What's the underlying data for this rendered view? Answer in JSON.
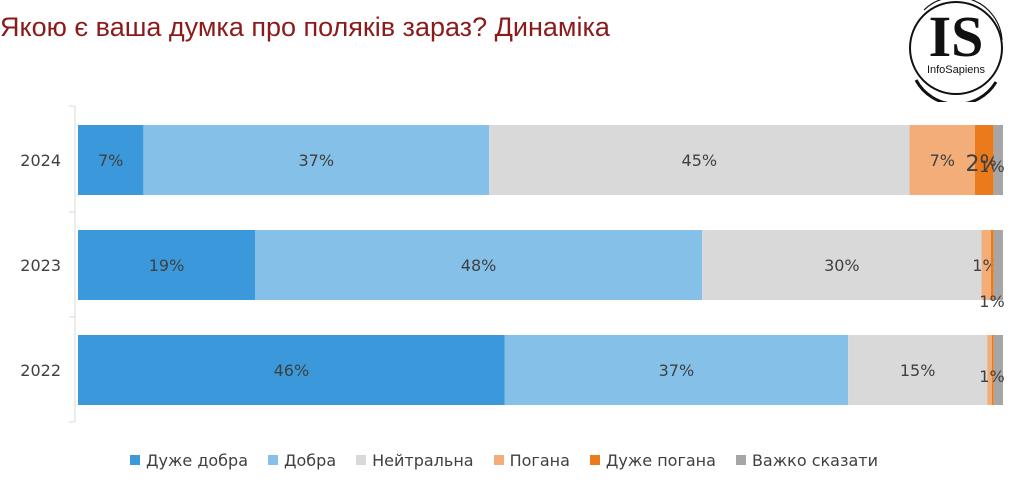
{
  "title": "Якою є ваша думка про поляків зараз? Динаміка",
  "logo": {
    "text": "IS",
    "subtext": "InfoSapiens"
  },
  "chart_data": {
    "type": "bar",
    "orientation": "horizontal",
    "stacked": true,
    "categories": [
      "2024",
      "2023",
      "2022"
    ],
    "series": [
      {
        "name": "Дуже добра",
        "color": "#3a98db",
        "values": [
          7,
          19,
          46
        ],
        "labels": [
          "7%",
          "19%",
          "46%"
        ]
      },
      {
        "name": "Добра",
        "color": "#85c0e8",
        "values": [
          37,
          48,
          37
        ],
        "labels": [
          "37%",
          "48%",
          "37%"
        ]
      },
      {
        "name": "Нейтральна",
        "color": "#d9d9d9",
        "values": [
          45,
          30,
          15
        ],
        "labels": [
          "45%",
          "30%",
          "15%"
        ]
      },
      {
        "name": "Погана",
        "color": "#f2ad78",
        "values": [
          7,
          1,
          0.5
        ],
        "labels": [
          "7%",
          "1%",
          ""
        ]
      },
      {
        "name": "Дуже погана",
        "color": "#ea7a1c",
        "values": [
          2,
          0.3,
          0.2
        ],
        "labels": [
          "2%",
          "",
          ""
        ]
      },
      {
        "name": "Важко сказати",
        "color": "#a6a6a6",
        "values": [
          1,
          1,
          1
        ],
        "labels": [
          "1%",
          "1%",
          "1%"
        ]
      }
    ],
    "legend_position": "bottom",
    "grid": false
  }
}
